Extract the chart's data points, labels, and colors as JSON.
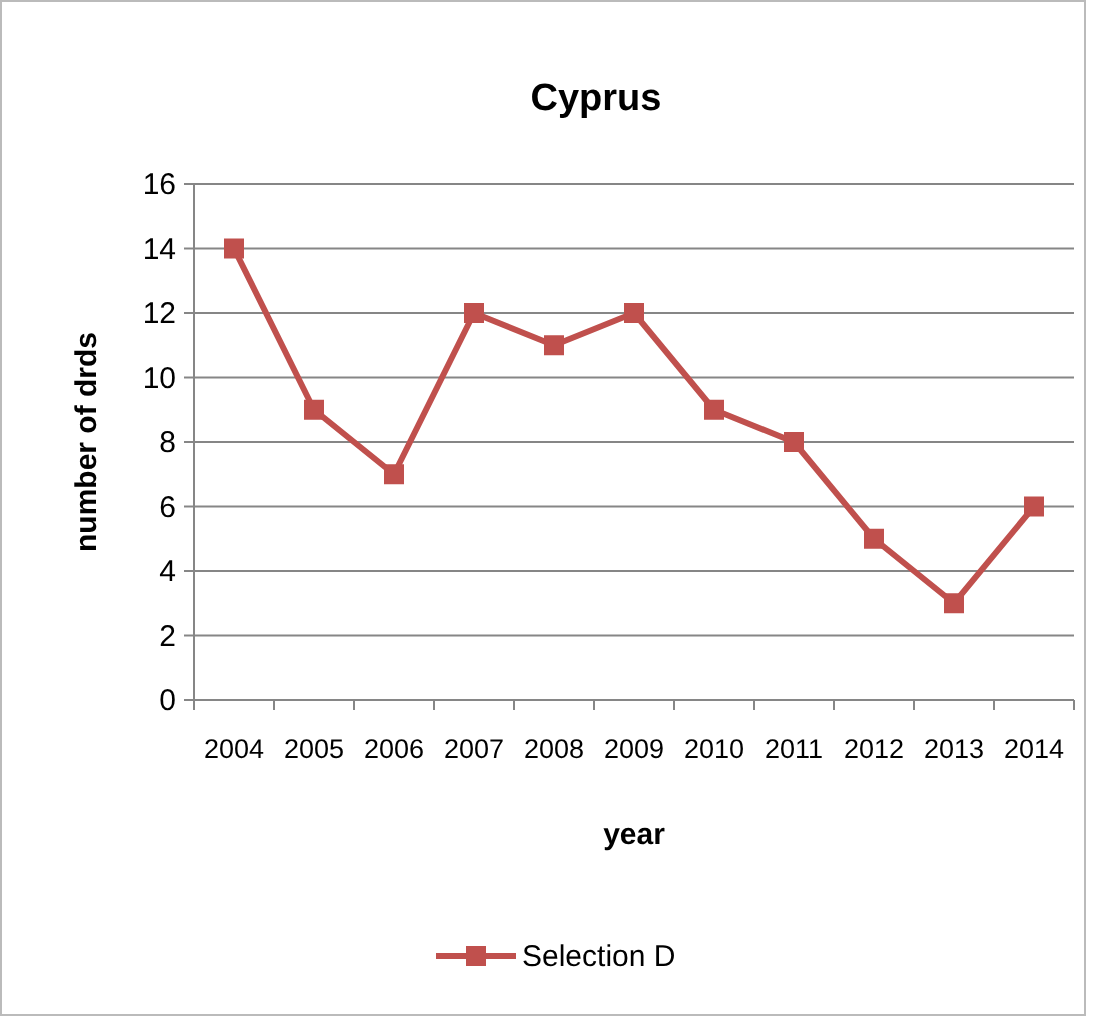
{
  "chart_data": {
    "type": "line",
    "title": "Cyprus",
    "xlabel": "year",
    "ylabel": "number of drds",
    "categories": [
      "2004",
      "2005",
      "2006",
      "2007",
      "2008",
      "2009",
      "2010",
      "2011",
      "2012",
      "2013",
      "2014"
    ],
    "series": [
      {
        "name": "Selection D",
        "color": "#c0504d",
        "values": [
          14,
          9,
          7,
          12,
          11,
          12,
          9,
          8,
          5,
          3,
          6
        ]
      }
    ],
    "ylim": [
      0,
      16
    ],
    "yticks": [
      0,
      2,
      4,
      6,
      8,
      10,
      12,
      14,
      16
    ],
    "grid": "y",
    "legend": "bottom",
    "marker": "square",
    "line_style": "solid"
  }
}
